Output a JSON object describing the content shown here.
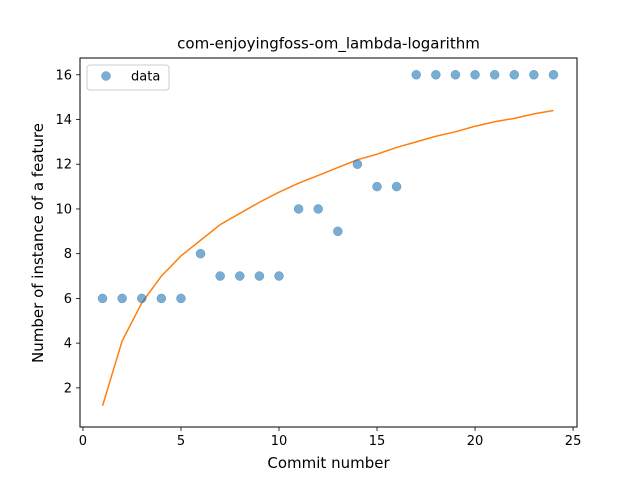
{
  "chart_data": {
    "type": "scatter",
    "title": "com-enjoyingfoss-om_lambda-logarithm",
    "xlabel": "Commit number",
    "ylabel": "Number of instance of a feature",
    "xlim": [
      -0.15,
      25.2
    ],
    "ylim": [
      0.25,
      16.75
    ],
    "xticks": [
      0,
      5,
      10,
      15,
      20,
      25
    ],
    "yticks": [
      2,
      4,
      6,
      8,
      10,
      12,
      14,
      16
    ],
    "grid": false,
    "legend_position": "upper-left",
    "series": [
      {
        "name": "data",
        "kind": "scatter",
        "color": "#1f77b4",
        "x": [
          1,
          2,
          3,
          4,
          5,
          6,
          7,
          8,
          9,
          10,
          11,
          12,
          13,
          14,
          15,
          16,
          17,
          18,
          19,
          20,
          21,
          22,
          23,
          24
        ],
        "y": [
          6,
          6,
          6,
          6,
          6,
          8,
          7,
          7,
          7,
          7,
          10,
          10,
          9,
          12,
          11,
          11,
          16,
          16,
          16,
          16,
          16,
          16,
          16,
          16
        ]
      },
      {
        "kind": "line",
        "color": "#ff7f0e",
        "x": [
          1,
          2,
          3,
          4,
          5,
          6,
          7,
          8,
          9,
          10,
          11,
          12,
          13,
          14,
          15,
          16,
          17,
          18,
          19,
          20,
          21,
          22,
          23,
          24
        ],
        "y": [
          1.2,
          4.1,
          5.8,
          7.0,
          7.9,
          8.6,
          9.3,
          9.8,
          10.3,
          10.75,
          11.15,
          11.5,
          11.85,
          12.2,
          12.45,
          12.75,
          13.0,
          13.25,
          13.45,
          13.7,
          13.9,
          14.05,
          14.25,
          14.4
        ]
      }
    ]
  }
}
